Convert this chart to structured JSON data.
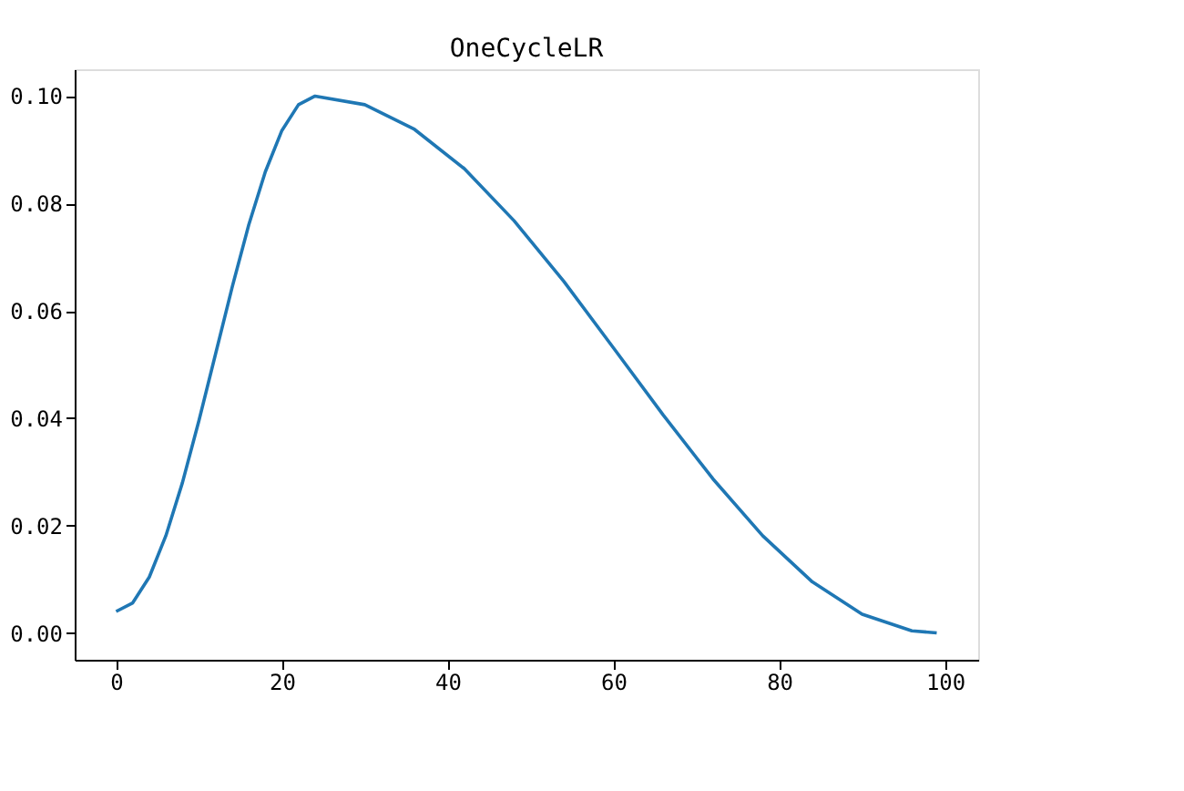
{
  "chart_data": {
    "type": "line",
    "title": "OneCycleLR",
    "series": [
      {
        "color": "#1f77b4",
        "x": [
          0,
          2,
          4,
          6,
          8,
          10,
          12,
          14,
          16,
          18,
          20,
          22,
          24,
          30,
          36,
          42,
          48,
          54,
          60,
          66,
          72,
          78,
          84,
          90,
          96,
          99
        ],
        "values": [
          0.004,
          0.0056,
          0.0104,
          0.0181,
          0.028,
          0.0396,
          0.052,
          0.0644,
          0.076,
          0.0859,
          0.0936,
          0.0984,
          0.1,
          0.0984,
          0.0938,
          0.0865,
          0.0768,
          0.0655,
          0.0531,
          0.0406,
          0.0287,
          0.0181,
          0.0095,
          0.0035,
          0.0004,
          0.0
        ]
      }
    ],
    "xlim": [
      -5,
      104
    ],
    "xticks": [
      0,
      20,
      40,
      60,
      80,
      100
    ],
    "ylim": [
      -0.005,
      0.105
    ],
    "yticks": [
      {
        "value": 0,
        "label": "0.00"
      },
      {
        "value": 0.02,
        "label": "0.02"
      },
      {
        "value": 0.04,
        "label": "0.04"
      },
      {
        "value": 0.06,
        "label": "0.06"
      },
      {
        "value": 0.08,
        "label": "0.08"
      },
      {
        "value": 0.1,
        "label": "0.10"
      }
    ],
    "grid": false,
    "marker": "none",
    "line_style": "solid"
  }
}
